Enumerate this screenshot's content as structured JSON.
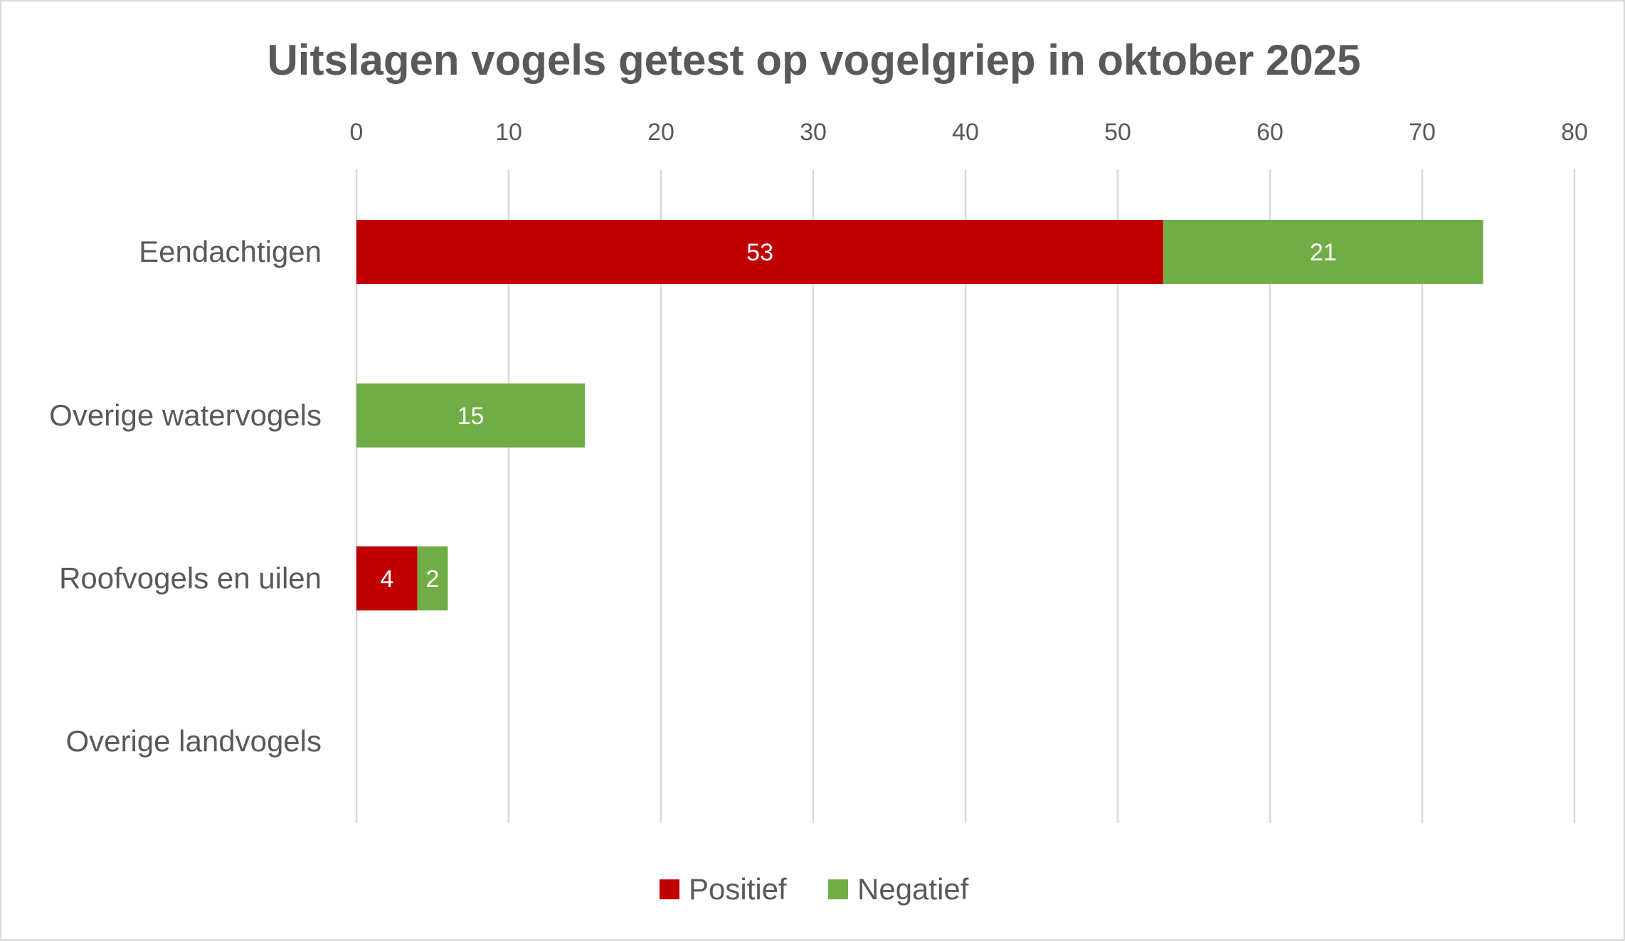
{
  "chart_data": {
    "type": "bar",
    "orientation": "horizontal",
    "stacked": true,
    "title": "Uitslagen vogels getest op vogelgriep in oktober 2025",
    "categories": [
      "Eendachtigen",
      "Overige watervogels",
      "Roofvogels en uilen",
      "Overige landvogels"
    ],
    "series": [
      {
        "name": "Positief",
        "color": "#c00000",
        "values": [
          53,
          0,
          4,
          0
        ]
      },
      {
        "name": "Negatief",
        "color": "#70ad47",
        "values": [
          21,
          15,
          2,
          0
        ]
      }
    ],
    "xlim": [
      0,
      80
    ],
    "ticks": [
      0,
      10,
      20,
      30,
      40,
      50,
      60,
      70,
      80
    ],
    "axis_position": "top",
    "grid": true,
    "legend": "bottom",
    "text_color": "#595959",
    "grid_color": "#d9d9d9",
    "label_color": "#ffffff"
  }
}
